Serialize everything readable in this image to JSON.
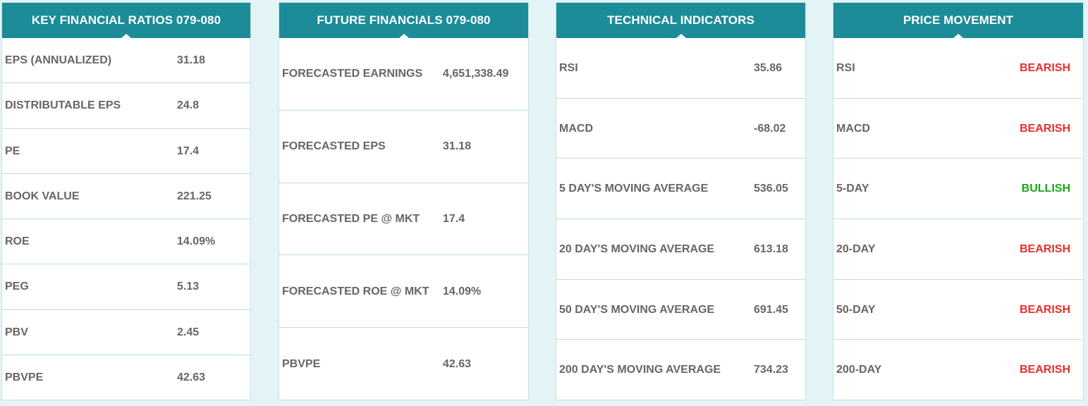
{
  "key_ratios": {
    "title": "KEY FINANCIAL RATIOS 079-080",
    "rows": [
      {
        "label": "EPS (ANNUALIZED)",
        "value": "31.18"
      },
      {
        "label": "DISTRIBUTABLE EPS",
        "value": "24.8"
      },
      {
        "label": "PE",
        "value": "17.4"
      },
      {
        "label": "BOOK VALUE",
        "value": "221.25"
      },
      {
        "label": "ROE",
        "value": "14.09%"
      },
      {
        "label": "PEG",
        "value": "5.13"
      },
      {
        "label": "PBV",
        "value": "2.45"
      },
      {
        "label": "PBVPE",
        "value": "42.63"
      }
    ]
  },
  "future_financials": {
    "title": "FUTURE FINANCIALS 079-080",
    "rows": [
      {
        "label": "FORECASTED EARNINGS",
        "value": "4,651,338.49"
      },
      {
        "label": "FORECASTED EPS",
        "value": "31.18"
      },
      {
        "label": "FORECASTED PE @ MKT",
        "value": "17.4"
      },
      {
        "label": "FORECASTED ROE @ MKT",
        "value": "14.09%"
      },
      {
        "label": "PBVPE",
        "value": "42.63"
      }
    ]
  },
  "technical_indicators": {
    "title": "TECHNICAL INDICATORS",
    "rows": [
      {
        "label": "RSI",
        "value": "35.86"
      },
      {
        "label": "MACD",
        "value": "-68.02"
      },
      {
        "label": "5 DAY'S MOVING AVERAGE",
        "value": "536.05"
      },
      {
        "label": "20 DAY'S MOVING AVERAGE",
        "value": "613.18"
      },
      {
        "label": "50 DAY'S MOVING AVERAGE",
        "value": "691.45"
      },
      {
        "label": "200 DAY'S MOVING AVERAGE",
        "value": "734.23"
      }
    ]
  },
  "price_movement": {
    "title": "PRICE MOVEMENT",
    "bearish_color": "#e62e2e",
    "bullish_color": "#1aa61a",
    "rows": [
      {
        "label": "RSI",
        "value": "BEARISH"
      },
      {
        "label": "MACD",
        "value": "BEARISH"
      },
      {
        "label": "5-DAY",
        "value": "BULLISH"
      },
      {
        "label": "20-DAY",
        "value": "BEARISH"
      },
      {
        "label": "50-DAY",
        "value": "BEARISH"
      },
      {
        "label": "200-DAY",
        "value": "BEARISH"
      }
    ]
  },
  "theme": {
    "header_color": "#1c8c98",
    "background": "#e3f4f7"
  }
}
